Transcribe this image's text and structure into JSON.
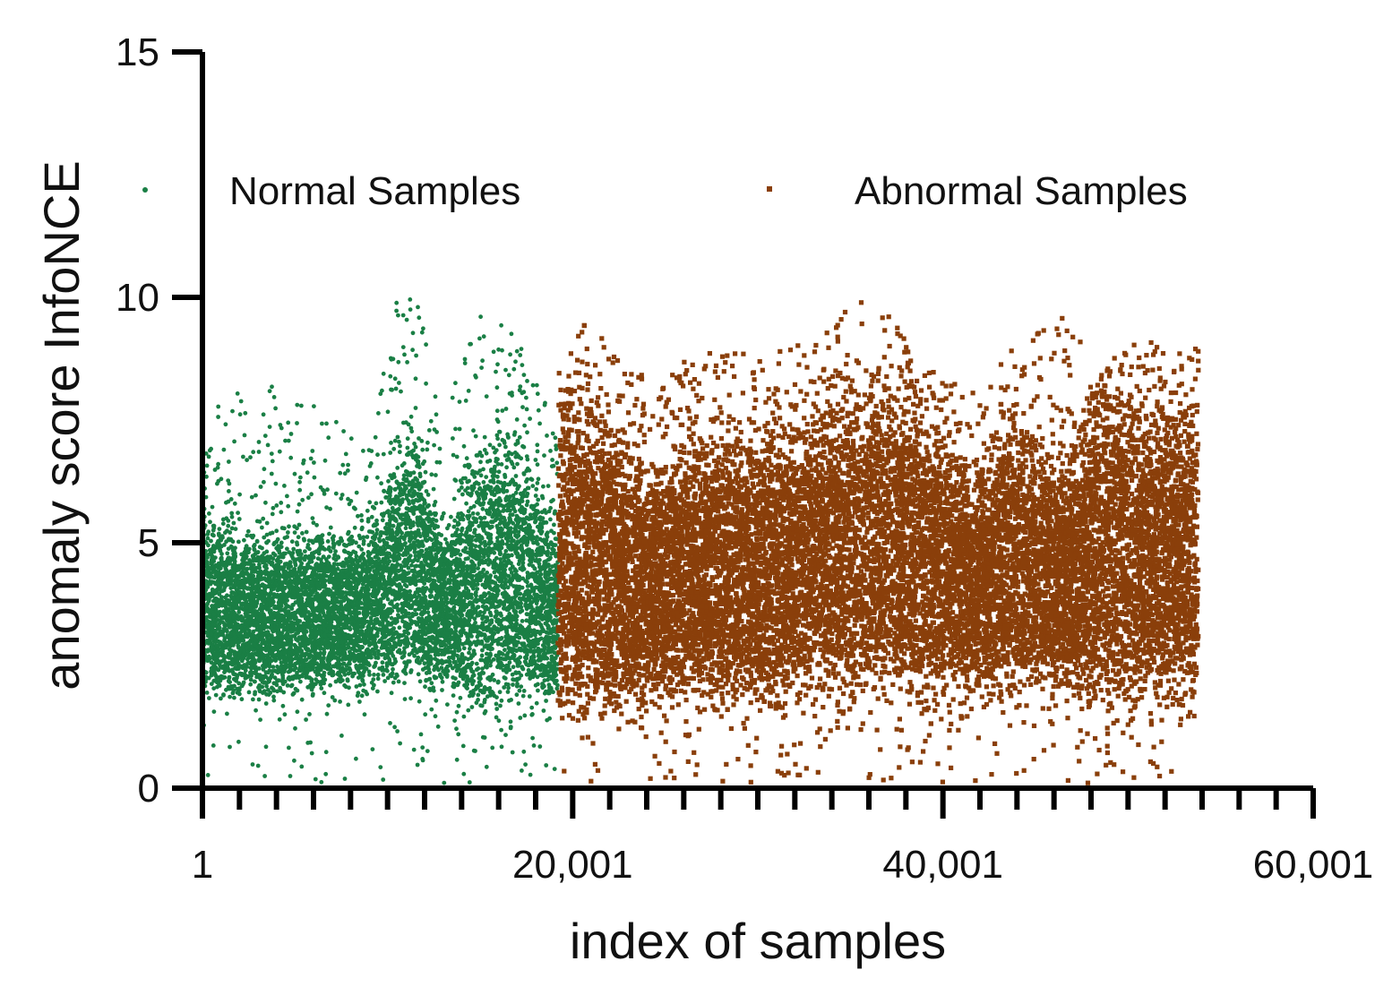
{
  "chart_data": {
    "type": "scatter",
    "title": "",
    "xlabel": "index of samples",
    "ylabel": "anomaly score InfoNCE",
    "xlim": [
      1,
      60001
    ],
    "ylim": [
      0,
      15
    ],
    "x_ticks": [
      {
        "value": 1,
        "label": "1"
      },
      {
        "value": 20001,
        "label": "20,001"
      },
      {
        "value": 40001,
        "label": "40,001"
      },
      {
        "value": 60001,
        "label": "60,001"
      }
    ],
    "x_minor_tick_step": 2000,
    "y_ticks": [
      {
        "value": 0,
        "label": "0"
      },
      {
        "value": 5,
        "label": "5"
      },
      {
        "value": 10,
        "label": "10"
      },
      {
        "value": 15,
        "label": "15"
      }
    ],
    "grid": false,
    "legend_position": "top",
    "series": [
      {
        "name": "Normal Samples",
        "color": "#1a7f45",
        "marker": "circle",
        "x_range": [
          1,
          19200
        ],
        "point_count": 19200,
        "typical_range": [
          2.0,
          5.0
        ],
        "envelope": [
          {
            "x": 1,
            "low": 2.0,
            "high": 5.2,
            "outlier_max": 7.5
          },
          {
            "x": 3000,
            "low": 2.0,
            "high": 5.0,
            "outlier_max": 8.5
          },
          {
            "x": 6000,
            "low": 2.1,
            "high": 5.0,
            "outlier_max": 7.8
          },
          {
            "x": 9000,
            "low": 2.2,
            "high": 5.0,
            "outlier_max": 7.0
          },
          {
            "x": 10500,
            "low": 2.3,
            "high": 6.5,
            "outlier_max": 10.2
          },
          {
            "x": 11500,
            "low": 2.3,
            "high": 6.8,
            "outlier_max": 10.2
          },
          {
            "x": 13000,
            "low": 2.2,
            "high": 5.0,
            "outlier_max": 7.5
          },
          {
            "x": 15000,
            "low": 1.8,
            "high": 6.8,
            "outlier_max": 9.8
          },
          {
            "x": 17000,
            "low": 1.8,
            "high": 6.8,
            "outlier_max": 9.2
          },
          {
            "x": 19200,
            "low": 2.0,
            "high": 5.0,
            "outlier_max": 7.5
          }
        ]
      },
      {
        "name": "Abnormal Samples",
        "color": "#8a3f0a",
        "marker": "square",
        "x_range": [
          19200,
          53800
        ],
        "point_count": 34600,
        "typical_range": [
          2.0,
          6.5
        ],
        "envelope": [
          {
            "x": 19200,
            "low": 1.8,
            "high": 7.5,
            "outlier_max": 8.5
          },
          {
            "x": 21000,
            "low": 1.6,
            "high": 7.5,
            "outlier_max": 9.7
          },
          {
            "x": 24000,
            "low": 2.0,
            "high": 6.2,
            "outlier_max": 8.3
          },
          {
            "x": 27000,
            "low": 2.0,
            "high": 6.8,
            "outlier_max": 9.0
          },
          {
            "x": 30000,
            "low": 1.8,
            "high": 6.8,
            "outlier_max": 8.8
          },
          {
            "x": 33000,
            "low": 2.1,
            "high": 7.2,
            "outlier_max": 9.1
          },
          {
            "x": 36000,
            "low": 2.2,
            "high": 7.8,
            "outlier_max": 10.2
          },
          {
            "x": 39000,
            "low": 2.0,
            "high": 7.4,
            "outlier_max": 8.7
          },
          {
            "x": 41500,
            "low": 2.2,
            "high": 6.0,
            "outlier_max": 8.0
          },
          {
            "x": 43500,
            "low": 2.1,
            "high": 7.2,
            "outlier_max": 9.0
          },
          {
            "x": 46500,
            "low": 2.2,
            "high": 6.2,
            "outlier_max": 9.6
          },
          {
            "x": 48500,
            "low": 1.8,
            "high": 7.8,
            "outlier_max": 8.6
          },
          {
            "x": 51000,
            "low": 1.9,
            "high": 7.4,
            "outlier_max": 9.2
          },
          {
            "x": 53800,
            "low": 1.8,
            "high": 7.6,
            "outlier_max": 9.0
          }
        ]
      }
    ]
  }
}
